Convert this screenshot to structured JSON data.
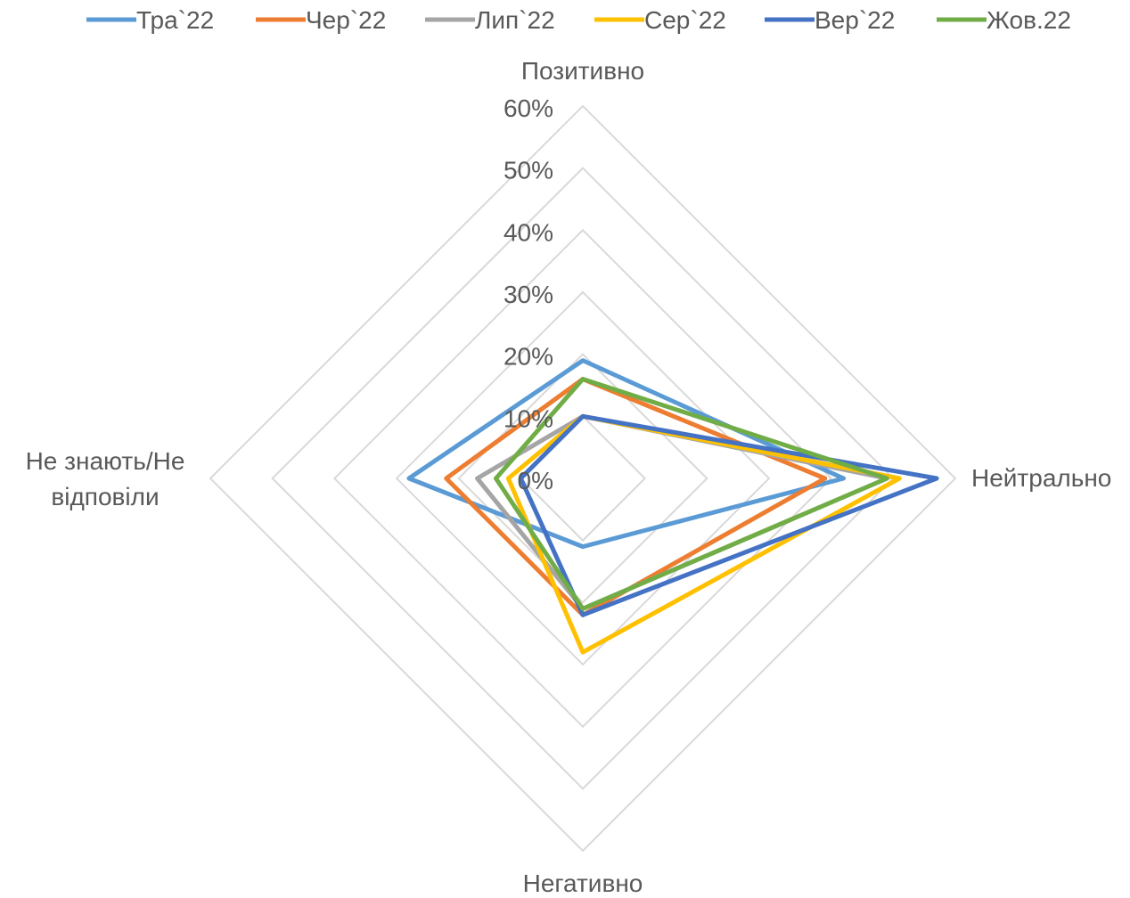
{
  "chart_data": {
    "type": "radar",
    "title": "",
    "axes": [
      "Позитивно",
      "Нейтрально",
      "Негативно",
      "Не знають/Не відповіли"
    ],
    "axis_labels": [
      "Позитивно",
      "Нейтрально",
      "Не знають/Не",
      "відповіли",
      "Негативно"
    ],
    "tick_labels": [
      "0%",
      "10%",
      "20%",
      "30%",
      "40%",
      "50%",
      "60%"
    ],
    "range": [
      0,
      0.6
    ],
    "step": 0.1,
    "grid": true,
    "legend_position": "top",
    "series": [
      {
        "name": "Тра`22",
        "color": "#5B9BD5",
        "values": [
          0.19,
          0.42,
          0.11,
          0.28
        ]
      },
      {
        "name": "Чер`22",
        "color": "#ED7D31",
        "values": [
          0.16,
          0.39,
          0.22,
          0.22
        ]
      },
      {
        "name": "Лип`22",
        "color": "#A5A5A5",
        "values": [
          0.1,
          0.49,
          0.21,
          0.17
        ]
      },
      {
        "name": "Сер`22",
        "color": "#FFC000",
        "values": [
          0.1,
          0.51,
          0.28,
          0.12
        ]
      },
      {
        "name": "Вер`22",
        "color": "#4472C4",
        "values": [
          0.1,
          0.57,
          0.22,
          0.1
        ]
      },
      {
        "name": "Жов.22",
        "color": "#70AD47",
        "values": [
          0.16,
          0.49,
          0.21,
          0.14
        ]
      }
    ]
  }
}
